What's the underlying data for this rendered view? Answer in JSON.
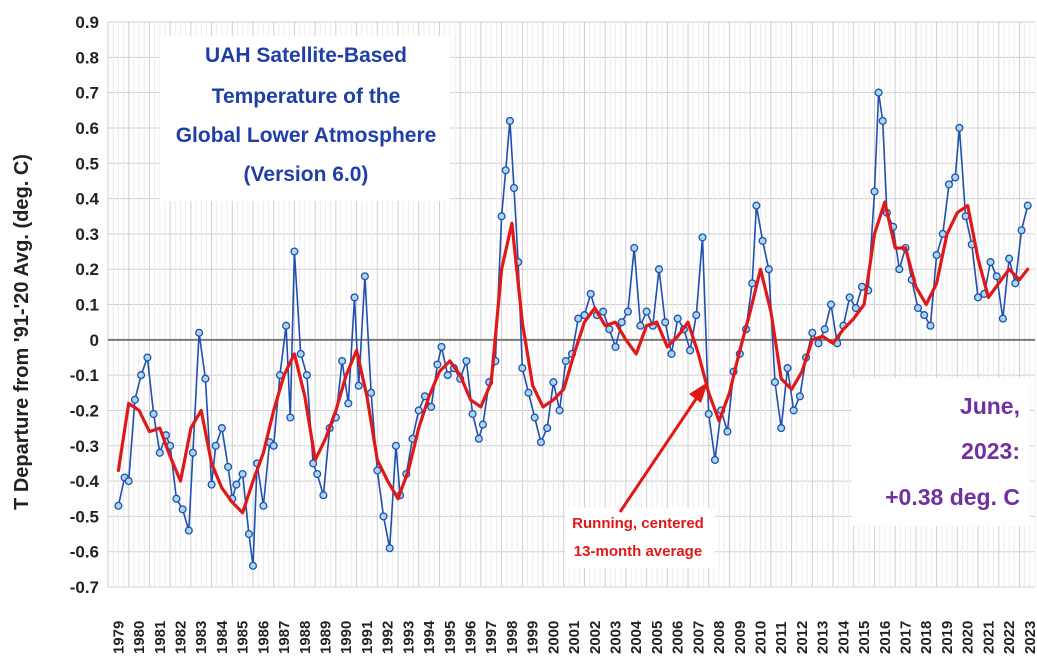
{
  "chart_data": {
    "type": "line",
    "title_lines": [
      "UAH Satellite-Based",
      "Temperature of the",
      "Global Lower Atmosphere",
      "(Version 6.0)"
    ],
    "ylabel": "T Departure from '91-'20 Avg. (deg. C)",
    "xlabel": "",
    "ylim": [
      -0.7,
      0.9
    ],
    "y_ticks": [
      "0.9",
      "0.8",
      "0.7",
      "0.6",
      "0.5",
      "0.4",
      "0.3",
      "0.2",
      "0.1",
      "0",
      "-0.1",
      "-0.2",
      "-0.3",
      "-0.4",
      "-0.5",
      "-0.6",
      "-0.7"
    ],
    "x_ticks": [
      "1979",
      "1980",
      "1981",
      "1982",
      "1983",
      "1984",
      "1985",
      "1986",
      "1987",
      "1988",
      "1989",
      "1990",
      "1991",
      "1992",
      "1993",
      "1994",
      "1995",
      "1996",
      "1997",
      "1998",
      "1999",
      "2000",
      "2001",
      "2002",
      "2003",
      "2004",
      "2005",
      "2006",
      "2007",
      "2008",
      "2009",
      "2010",
      "2011",
      "2012",
      "2013",
      "2014",
      "2015",
      "2016",
      "2017",
      "2018",
      "2019",
      "2020",
      "2021",
      "2022",
      "2023"
    ],
    "grid": true,
    "annotation_lines": [
      "June,",
      "2023:",
      "+0.38 deg. C"
    ],
    "running_label_lines": [
      "Running, centered",
      "13-month average"
    ],
    "series": [
      {
        "name": "monthly",
        "color": "#1f4fb0",
        "marker_fill": "#a9d8ee",
        "x": [
          1979.5,
          1979.8,
          1980.0,
          1980.3,
          1980.6,
          1980.9,
          1981.2,
          1981.5,
          1981.8,
          1982.0,
          1982.3,
          1982.6,
          1982.9,
          1983.1,
          1983.4,
          1983.7,
          1984.0,
          1984.2,
          1984.5,
          1984.8,
          1985.0,
          1985.2,
          1985.5,
          1985.8,
          1986.0,
          1986.2,
          1986.5,
          1986.8,
          1987.0,
          1987.3,
          1987.6,
          1987.8,
          1988.0,
          1988.3,
          1988.6,
          1988.9,
          1989.1,
          1989.4,
          1989.7,
          1990.0,
          1990.3,
          1990.6,
          1990.9,
          1991.1,
          1991.4,
          1991.7,
          1992.0,
          1992.3,
          1992.6,
          1992.9,
          1993.1,
          1993.4,
          1993.7,
          1994.0,
          1994.3,
          1994.6,
          1994.9,
          1995.1,
          1995.4,
          1995.7,
          1996.0,
          1996.3,
          1996.6,
          1996.9,
          1997.1,
          1997.4,
          1997.7,
          1998.0,
          1998.2,
          1998.4,
          1998.6,
          1998.8,
          1999.0,
          1999.3,
          1999.6,
          1999.9,
          2000.2,
          2000.5,
          2000.8,
          2001.1,
          2001.4,
          2001.7,
          2002.0,
          2002.3,
          2002.6,
          2002.9,
          2003.2,
          2003.5,
          2003.8,
          2004.1,
          2004.4,
          2004.7,
          2005.0,
          2005.3,
          2005.6,
          2005.9,
          2006.2,
          2006.5,
          2006.8,
          2007.1,
          2007.4,
          2007.7,
          2008.0,
          2008.3,
          2008.6,
          2008.9,
          2009.2,
          2009.5,
          2009.8,
          2010.1,
          2010.3,
          2010.6,
          2010.9,
          2011.2,
          2011.5,
          2011.8,
          2012.1,
          2012.4,
          2012.7,
          2013.0,
          2013.3,
          2013.6,
          2013.9,
          2014.2,
          2014.5,
          2014.8,
          2015.1,
          2015.4,
          2015.7,
          2016.0,
          2016.2,
          2016.4,
          2016.6,
          2016.9,
          2017.2,
          2017.5,
          2017.8,
          2018.1,
          2018.4,
          2018.7,
          2019.0,
          2019.3,
          2019.6,
          2019.9,
          2020.1,
          2020.4,
          2020.7,
          2021.0,
          2021.3,
          2021.6,
          2021.9,
          2022.2,
          2022.5,
          2022.8,
          2023.1,
          2023.4
        ],
        "y": [
          -0.47,
          -0.39,
          -0.4,
          -0.17,
          -0.1,
          -0.05,
          -0.21,
          -0.32,
          -0.27,
          -0.3,
          -0.45,
          -0.48,
          -0.54,
          -0.32,
          0.02,
          -0.11,
          -0.41,
          -0.3,
          -0.25,
          -0.36,
          -0.45,
          -0.41,
          -0.38,
          -0.55,
          -0.64,
          -0.35,
          -0.47,
          -0.29,
          -0.3,
          -0.1,
          0.04,
          -0.22,
          0.25,
          -0.04,
          -0.1,
          -0.35,
          -0.38,
          -0.44,
          -0.25,
          -0.22,
          -0.06,
          -0.18,
          0.12,
          -0.13,
          0.18,
          -0.15,
          -0.37,
          -0.5,
          -0.59,
          -0.3,
          -0.44,
          -0.38,
          -0.28,
          -0.2,
          -0.16,
          -0.19,
          -0.07,
          -0.02,
          -0.1,
          -0.08,
          -0.11,
          -0.06,
          -0.21,
          -0.28,
          -0.24,
          -0.12,
          -0.06,
          0.35,
          0.48,
          0.62,
          0.43,
          0.22,
          -0.08,
          -0.15,
          -0.22,
          -0.29,
          -0.25,
          -0.12,
          -0.2,
          -0.06,
          -0.04,
          0.06,
          0.07,
          0.13,
          0.07,
          0.08,
          0.03,
          -0.02,
          0.05,
          0.08,
          0.26,
          0.04,
          0.08,
          0.04,
          0.2,
          0.05,
          -0.04,
          0.06,
          0.03,
          -0.03,
          0.07,
          0.29,
          -0.21,
          -0.34,
          -0.2,
          -0.26,
          -0.09,
          -0.04,
          0.03,
          0.16,
          0.38,
          0.28,
          0.2,
          -0.12,
          -0.25,
          -0.08,
          -0.2,
          -0.16,
          -0.05,
          0.02,
          -0.01,
          0.03,
          0.1,
          -0.01,
          0.04,
          0.12,
          0.09,
          0.15,
          0.14,
          0.42,
          0.7,
          0.62,
          0.36,
          0.32,
          0.2,
          0.26,
          0.17,
          0.09,
          0.07,
          0.04,
          0.24,
          0.3,
          0.44,
          0.46,
          0.6,
          0.35,
          0.27,
          0.12,
          0.13,
          0.22,
          0.18,
          0.06,
          0.23,
          0.16,
          0.31,
          0.38
        ]
      },
      {
        "name": "Running, centered 13-month average",
        "color": "#e01818",
        "x": [
          1979.5,
          1980.0,
          1980.5,
          1981.0,
          1981.5,
          1982.0,
          1982.5,
          1983.0,
          1983.5,
          1984.0,
          1984.5,
          1985.0,
          1985.5,
          1986.0,
          1986.5,
          1987.0,
          1987.5,
          1988.0,
          1988.5,
          1989.0,
          1989.5,
          1990.0,
          1990.5,
          1991.0,
          1991.5,
          1992.0,
          1992.5,
          1993.0,
          1993.5,
          1994.0,
          1994.5,
          1995.0,
          1995.5,
          1996.0,
          1996.5,
          1997.0,
          1997.5,
          1998.0,
          1998.5,
          1999.0,
          1999.5,
          2000.0,
          2000.5,
          2001.0,
          2001.5,
          2002.0,
          2002.5,
          2003.0,
          2003.5,
          2004.0,
          2004.5,
          2005.0,
          2005.5,
          2006.0,
          2006.5,
          2007.0,
          2007.5,
          2008.0,
          2008.5,
          2009.0,
          2009.5,
          2010.0,
          2010.5,
          2011.0,
          2011.5,
          2012.0,
          2012.5,
          2013.0,
          2013.5,
          2014.0,
          2014.5,
          2015.0,
          2015.5,
          2016.0,
          2016.5,
          2017.0,
          2017.5,
          2018.0,
          2018.5,
          2019.0,
          2019.5,
          2020.0,
          2020.5,
          2021.0,
          2021.5,
          2022.0,
          2022.5,
          2023.0,
          2023.4
        ],
        "y": [
          -0.37,
          -0.18,
          -0.2,
          -0.26,
          -0.25,
          -0.33,
          -0.4,
          -0.25,
          -0.2,
          -0.35,
          -0.42,
          -0.46,
          -0.49,
          -0.4,
          -0.32,
          -0.2,
          -0.1,
          -0.04,
          -0.16,
          -0.34,
          -0.28,
          -0.2,
          -0.1,
          -0.03,
          -0.16,
          -0.34,
          -0.4,
          -0.45,
          -0.37,
          -0.25,
          -0.16,
          -0.09,
          -0.06,
          -0.1,
          -0.17,
          -0.19,
          -0.12,
          0.2,
          0.33,
          0.05,
          -0.13,
          -0.19,
          -0.17,
          -0.14,
          -0.04,
          0.05,
          0.09,
          0.04,
          0.05,
          0.0,
          -0.04,
          0.04,
          0.05,
          -0.02,
          0.01,
          0.05,
          -0.04,
          -0.15,
          -0.23,
          -0.15,
          -0.03,
          0.08,
          0.2,
          0.08,
          -0.11,
          -0.14,
          -0.09,
          0.0,
          0.01,
          -0.01,
          0.03,
          0.06,
          0.1,
          0.3,
          0.39,
          0.26,
          0.26,
          0.15,
          0.1,
          0.16,
          0.3,
          0.36,
          0.38,
          0.23,
          0.12,
          0.16,
          0.2,
          0.17,
          0.2
        ]
      }
    ]
  }
}
